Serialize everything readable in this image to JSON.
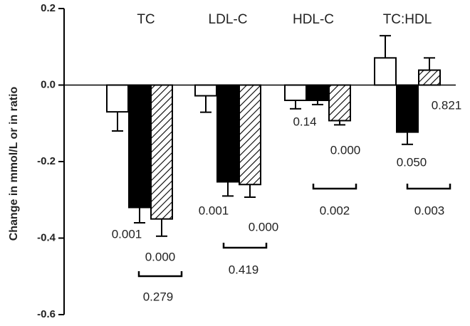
{
  "chart_data": {
    "type": "bar",
    "y_label": "Change in mmol/L or in ratio",
    "categories": [
      "TC",
      "LDL-C",
      "HDL-C",
      "TC:HDL"
    ],
    "series": [
      {
        "color": "#ffffff",
        "pattern": "solid",
        "values": [
          -0.07,
          -0.028,
          -0.04,
          0.071
        ],
        "errors": [
          0.05,
          0.043,
          0.022,
          0.058
        ]
      },
      {
        "color": "#000000",
        "pattern": "solid",
        "values": [
          -0.32,
          -0.253,
          -0.04,
          -0.123
        ],
        "errors": [
          0.04,
          0.037,
          0.011,
          0.032
        ]
      },
      {
        "color": "#ffffff",
        "pattern": "hatch",
        "values": [
          -0.35,
          -0.26,
          -0.093,
          0.039
        ],
        "errors": [
          0.045,
          0.033,
          0.011,
          0.032
        ]
      }
    ],
    "annotations": [
      "0.001",
      "0.000",
      "0.279",
      "0.001",
      "0.000",
      "0.419",
      "0.14",
      "0.000",
      "0.002",
      "0.821",
      "0.050",
      "0.003"
    ],
    "ylim": [
      -0.6,
      0.2
    ],
    "yticks": [
      -0.6,
      -0.4,
      -0.2,
      {
        "value": 0,
        "label": "0.0"
      },
      0.2
    ]
  }
}
